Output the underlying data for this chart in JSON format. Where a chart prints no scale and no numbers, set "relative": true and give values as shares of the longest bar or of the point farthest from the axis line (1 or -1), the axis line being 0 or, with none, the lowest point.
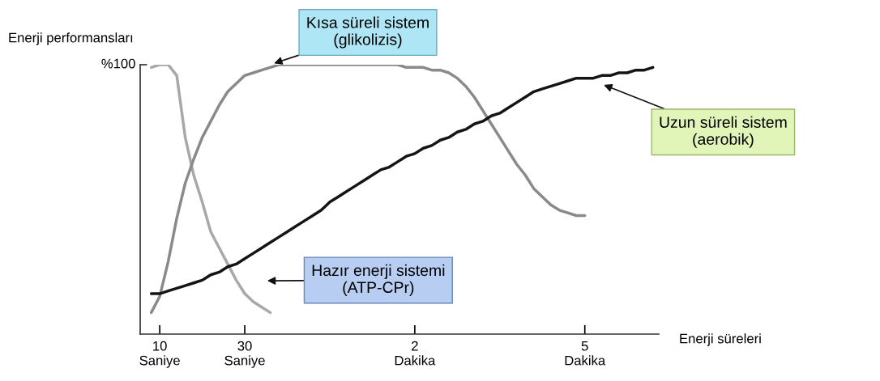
{
  "chart_data": {
    "type": "line",
    "relative": true,
    "xlabel": "Enerji süreleri",
    "ylabel": "Enerji performansları",
    "categories": [
      null,
      null,
      "10\nSaniye",
      null,
      null,
      null,
      null,
      null,
      null,
      null,
      null,
      null,
      "30\nSaniye",
      null,
      null,
      null,
      null,
      null,
      null,
      null,
      null,
      null,
      null,
      null,
      null,
      null,
      null,
      null,
      null,
      null,
      null,
      null,
      "2\nDakika",
      null,
      null,
      null,
      null,
      null,
      null,
      null,
      null,
      null,
      null,
      null,
      null,
      null,
      null,
      null,
      null,
      null,
      null,
      null,
      "5\nDakika",
      null,
      null,
      null,
      null,
      null,
      null,
      null,
      null
    ],
    "grid": false,
    "marker": "none",
    "line_style": "solid",
    "series": [
      {
        "color": "#a8a8a8",
        "values": [
          null,
          0.99,
          1.0,
          1.0,
          0.96,
          0.73,
          0.59,
          0.49,
          0.38,
          0.32,
          0.26,
          0.2,
          0.15,
          0.12,
          0.1,
          0.08,
          null,
          null,
          null,
          null,
          null,
          null,
          null,
          null,
          null,
          null,
          null,
          null,
          null,
          null,
          null,
          null,
          null,
          null,
          null,
          null,
          null,
          null,
          null,
          null,
          null,
          null,
          null,
          null,
          null,
          null,
          null,
          null,
          null,
          null,
          null,
          null,
          null,
          null,
          null,
          null,
          null,
          null,
          null,
          null,
          null
        ]
      },
      {
        "color": "#8a8a8a",
        "values": [
          null,
          0.08,
          0.14,
          0.27,
          0.43,
          0.56,
          0.65,
          0.73,
          0.79,
          0.85,
          0.9,
          0.93,
          0.96,
          0.97,
          0.98,
          0.99,
          1.0,
          1.0,
          1.0,
          1.0,
          1.0,
          1.0,
          1.0,
          1.0,
          1.0,
          1.0,
          1.0,
          1.0,
          1.0,
          1.0,
          1.0,
          0.99,
          0.99,
          0.99,
          0.98,
          0.98,
          0.97,
          0.95,
          0.92,
          0.88,
          0.83,
          0.78,
          0.73,
          0.68,
          0.63,
          0.59,
          0.54,
          0.51,
          0.48,
          0.46,
          0.45,
          0.44,
          0.44,
          null,
          null,
          null,
          null,
          null,
          null,
          null,
          null
        ]
      },
      {
        "color": "#141414",
        "values": [
          null,
          0.15,
          0.15,
          0.16,
          0.17,
          0.18,
          0.19,
          0.2,
          0.22,
          0.23,
          0.25,
          0.26,
          0.28,
          0.3,
          0.32,
          0.34,
          0.36,
          0.38,
          0.4,
          0.42,
          0.44,
          0.46,
          0.49,
          0.51,
          0.53,
          0.55,
          0.57,
          0.59,
          0.61,
          0.62,
          0.64,
          0.66,
          0.67,
          0.69,
          0.7,
          0.72,
          0.73,
          0.75,
          0.76,
          0.78,
          0.79,
          0.81,
          0.82,
          0.84,
          0.86,
          0.88,
          0.9,
          0.91,
          0.92,
          0.93,
          0.94,
          0.95,
          0.95,
          0.95,
          0.96,
          0.96,
          0.97,
          0.97,
          0.98,
          0.98,
          0.99
        ]
      }
    ],
    "annotations": [
      "%100",
      "Kısa süreli sistem\n(glikolizis)",
      "Uzun süreli sistem\n(aerobik)",
      "Hazır enerji sistemi\n(ATP-CPr)"
    ]
  }
}
